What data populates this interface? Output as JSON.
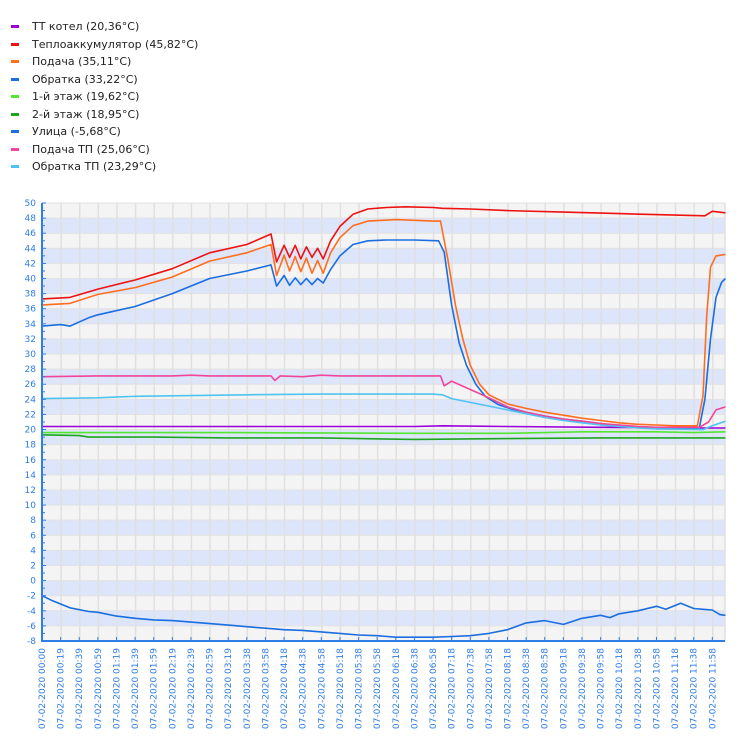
{
  "chart_data": {
    "type": "line",
    "title": "",
    "xlabel": "",
    "ylabel": "°C",
    "ylim": [
      -8,
      50
    ],
    "yticks": [
      50,
      48,
      46,
      44,
      42,
      40,
      38,
      36,
      34,
      32,
      30,
      28,
      26,
      24,
      22,
      20,
      18,
      16,
      14,
      12,
      10,
      8,
      6,
      4,
      2,
      0,
      -2,
      -4,
      -6,
      -8
    ],
    "grid": true,
    "legend_position": "top-left",
    "band_colors": {
      "light": "#f4f4f4",
      "blue": "#dde5fb"
    },
    "axis_color": "#2f7de6",
    "categories": [
      "07-02-2020 00:00",
      "07-02-2020 00:19",
      "07-02-2020 00:39",
      "07-02-2020 00:59",
      "07-02-2020 01:19",
      "07-02-2020 01:39",
      "07-02-2020 01:59",
      "07-02-2020 02:19",
      "07-02-2020 02:39",
      "07-02-2020 02:59",
      "07-02-2020 03:19",
      "07-02-2020 03:38",
      "07-02-2020 03:58",
      "07-02-2020 04:18",
      "07-02-2020 04:38",
      "07-02-2020 04:58",
      "07-02-2020 05:18",
      "07-02-2020 05:38",
      "07-02-2020 05:58",
      "07-02-2020 06:18",
      "07-02-2020 06:38",
      "07-02-2020 06:58",
      "07-02-2020 07:18",
      "07-02-2020 07:38",
      "07-02-2020 07:58",
      "07-02-2020 08:18",
      "07-02-2020 08:38",
      "07-02-2020 08:58",
      "07-02-2020 09:18",
      "07-02-2020 09:38",
      "07-02-2020 09:58",
      "07-02-2020 10:18",
      "07-02-2020 10:38",
      "07-02-2020 10:58",
      "07-02-2020 11:18",
      "07-02-2020 11:38",
      "07-02-2020 11:58"
    ],
    "series": [
      {
        "name": "ТТ котел",
        "legend": "ТТ котел (20,36°C)",
        "color": "#9b00d9",
        "points": [
          [
            0,
            20.4
          ],
          [
            10,
            20.4
          ],
          [
            20,
            20.4
          ],
          [
            21.5,
            20.5
          ],
          [
            25,
            20.4
          ],
          [
            30,
            20.3
          ],
          [
            35.5,
            20.2
          ],
          [
            36.7,
            20.2
          ]
        ]
      },
      {
        "name": "Теплоаккумулятор",
        "legend": "Теплоаккумулятор (45,82°C)",
        "color": "#ee1111",
        "points": [
          [
            0,
            37.3
          ],
          [
            1.5,
            37.5
          ],
          [
            3,
            38.6
          ],
          [
            5,
            39.8
          ],
          [
            7,
            41.3
          ],
          [
            9,
            43.4
          ],
          [
            11,
            44.5
          ],
          [
            12.3,
            45.9
          ],
          [
            12.6,
            42.2
          ],
          [
            13,
            44.4
          ],
          [
            13.3,
            42.8
          ],
          [
            13.6,
            44.4
          ],
          [
            13.9,
            42.6
          ],
          [
            14.2,
            44.2
          ],
          [
            14.5,
            42.8
          ],
          [
            14.8,
            44.0
          ],
          [
            15.1,
            42.6
          ],
          [
            15.5,
            45.0
          ],
          [
            16,
            46.9
          ],
          [
            16.7,
            48.5
          ],
          [
            17.5,
            49.2
          ],
          [
            18.5,
            49.4
          ],
          [
            19.5,
            49.5
          ],
          [
            21,
            49.4
          ],
          [
            21.5,
            49.3
          ],
          [
            23,
            49.2
          ],
          [
            25,
            49.0
          ],
          [
            28,
            48.8
          ],
          [
            31,
            48.6
          ],
          [
            34,
            48.4
          ],
          [
            35.6,
            48.3
          ],
          [
            36,
            48.9
          ],
          [
            36.7,
            48.7
          ]
        ]
      },
      {
        "name": "Подача",
        "legend": "Подача (35,11°C)",
        "color": "#ff6d1f",
        "points": [
          [
            0,
            36.5
          ],
          [
            1.5,
            36.7
          ],
          [
            3,
            37.9
          ],
          [
            5,
            38.8
          ],
          [
            7,
            40.2
          ],
          [
            9,
            42.3
          ],
          [
            11,
            43.4
          ],
          [
            12.3,
            44.5
          ],
          [
            12.6,
            40.4
          ],
          [
            13,
            43.1
          ],
          [
            13.3,
            41.0
          ],
          [
            13.6,
            42.9
          ],
          [
            13.9,
            40.9
          ],
          [
            14.2,
            42.7
          ],
          [
            14.5,
            40.7
          ],
          [
            14.8,
            42.4
          ],
          [
            15.1,
            40.7
          ],
          [
            15.5,
            43.4
          ],
          [
            16,
            45.4
          ],
          [
            16.7,
            47.0
          ],
          [
            17.5,
            47.6
          ],
          [
            19,
            47.8
          ],
          [
            21,
            47.6
          ],
          [
            21.4,
            47.6
          ],
          [
            21.8,
            42.5
          ],
          [
            22.2,
            36.5
          ],
          [
            22.6,
            32.0
          ],
          [
            23,
            28.5
          ],
          [
            23.5,
            26.0
          ],
          [
            24,
            24.6
          ],
          [
            25,
            23.4
          ],
          [
            26,
            22.8
          ],
          [
            27,
            22.3
          ],
          [
            28,
            21.9
          ],
          [
            29,
            21.5
          ],
          [
            30,
            21.2
          ],
          [
            31,
            20.9
          ],
          [
            32,
            20.7
          ],
          [
            33,
            20.6
          ],
          [
            34,
            20.5
          ],
          [
            35.2,
            20.5
          ],
          [
            35.5,
            24.5
          ],
          [
            35.7,
            35.0
          ],
          [
            35.9,
            41.5
          ],
          [
            36.2,
            43.0
          ],
          [
            36.7,
            43.2
          ]
        ]
      },
      {
        "name": "Обратка",
        "legend": "Обратка (33,22°C)",
        "color": "#1a6ee0",
        "points": [
          [
            0,
            33.7
          ],
          [
            1,
            33.9
          ],
          [
            1.5,
            33.7
          ],
          [
            2.5,
            34.8
          ],
          [
            3,
            35.2
          ],
          [
            5,
            36.3
          ],
          [
            7,
            38.0
          ],
          [
            9,
            40.0
          ],
          [
            11,
            41.0
          ],
          [
            12.3,
            41.8
          ],
          [
            12.6,
            39.0
          ],
          [
            13,
            40.4
          ],
          [
            13.3,
            39.1
          ],
          [
            13.6,
            40.1
          ],
          [
            13.9,
            39.2
          ],
          [
            14.2,
            40.0
          ],
          [
            14.5,
            39.2
          ],
          [
            14.8,
            40.0
          ],
          [
            15.1,
            39.4
          ],
          [
            15.5,
            41.2
          ],
          [
            16,
            43.0
          ],
          [
            16.7,
            44.5
          ],
          [
            17.5,
            45.0
          ],
          [
            18.5,
            45.1
          ],
          [
            20,
            45.1
          ],
          [
            21.3,
            45.0
          ],
          [
            21.6,
            43.5
          ],
          [
            22,
            36.5
          ],
          [
            22.4,
            31.5
          ],
          [
            22.8,
            28.5
          ],
          [
            23.3,
            26.0
          ],
          [
            23.8,
            24.4
          ],
          [
            24.5,
            23.3
          ],
          [
            25.5,
            22.5
          ],
          [
            27,
            21.8
          ],
          [
            28,
            21.4
          ],
          [
            29,
            21.1
          ],
          [
            30,
            20.8
          ],
          [
            31,
            20.5
          ],
          [
            32,
            20.3
          ],
          [
            33,
            20.1
          ],
          [
            34,
            20.1
          ],
          [
            35.3,
            20.2
          ],
          [
            35.6,
            24.0
          ],
          [
            35.9,
            32.0
          ],
          [
            36.2,
            37.5
          ],
          [
            36.5,
            39.5
          ],
          [
            36.7,
            40.0
          ]
        ]
      },
      {
        "name": "1-й этаж",
        "legend": "1-й этаж (19,62°C)",
        "color": "#55e62e",
        "points": [
          [
            0,
            19.6
          ],
          [
            10,
            19.6
          ],
          [
            20,
            19.5
          ],
          [
            25,
            19.5
          ],
          [
            29,
            19.7
          ],
          [
            30,
            19.7
          ],
          [
            33,
            19.7
          ],
          [
            35,
            19.6
          ],
          [
            36.7,
            19.7
          ]
        ]
      },
      {
        "name": "2-й этаж",
        "legend": "2-й этаж (18,95°C)",
        "color": "#1ea51e",
        "points": [
          [
            0,
            19.3
          ],
          [
            2,
            19.2
          ],
          [
            2.5,
            19.0
          ],
          [
            6,
            19.0
          ],
          [
            10,
            18.9
          ],
          [
            15,
            18.9
          ],
          [
            17,
            18.8
          ],
          [
            20,
            18.7
          ],
          [
            25,
            18.8
          ],
          [
            30,
            18.9
          ],
          [
            33,
            18.9
          ],
          [
            35,
            18.9
          ],
          [
            36.7,
            18.9
          ]
        ]
      },
      {
        "name": "Улица",
        "legend": "Улица (-5,68°C)",
        "color": "#1a6ee0",
        "points": [
          [
            0,
            -2.0
          ],
          [
            0.5,
            -2.6
          ],
          [
            1.5,
            -3.6
          ],
          [
            2.5,
            -4.1
          ],
          [
            3,
            -4.2
          ],
          [
            4,
            -4.7
          ],
          [
            5,
            -5.0
          ],
          [
            6,
            -5.2
          ],
          [
            7,
            -5.3
          ],
          [
            8,
            -5.5
          ],
          [
            9,
            -5.7
          ],
          [
            10,
            -5.9
          ],
          [
            11,
            -6.1
          ],
          [
            12,
            -6.3
          ],
          [
            13,
            -6.5
          ],
          [
            14,
            -6.6
          ],
          [
            15,
            -6.8
          ],
          [
            16,
            -7.0
          ],
          [
            17,
            -7.2
          ],
          [
            18,
            -7.3
          ],
          [
            19,
            -7.5
          ],
          [
            20,
            -7.5
          ],
          [
            21,
            -7.5
          ],
          [
            22,
            -7.4
          ],
          [
            23,
            -7.3
          ],
          [
            24,
            -7.0
          ],
          [
            25,
            -6.5
          ],
          [
            26,
            -5.6
          ],
          [
            27,
            -5.3
          ],
          [
            28,
            -5.8
          ],
          [
            29,
            -5.0
          ],
          [
            30,
            -4.6
          ],
          [
            30.5,
            -4.9
          ],
          [
            31,
            -4.4
          ],
          [
            32,
            -4.0
          ],
          [
            33,
            -3.4
          ],
          [
            33.5,
            -3.8
          ],
          [
            34.3,
            -3.0
          ],
          [
            35,
            -3.7
          ],
          [
            35.5,
            -3.8
          ],
          [
            36,
            -3.9
          ],
          [
            36.4,
            -4.5
          ],
          [
            36.7,
            -4.6
          ]
        ]
      },
      {
        "name": "Подача ТП",
        "legend": "Подача ТП (25,06°C)",
        "color": "#f2449a",
        "points": [
          [
            0,
            27.0
          ],
          [
            3,
            27.1
          ],
          [
            7,
            27.1
          ],
          [
            8,
            27.2
          ],
          [
            9,
            27.1
          ],
          [
            12.3,
            27.1
          ],
          [
            12.5,
            26.5
          ],
          [
            12.8,
            27.1
          ],
          [
            14,
            27.0
          ],
          [
            15,
            27.2
          ],
          [
            16,
            27.1
          ],
          [
            21.4,
            27.1
          ],
          [
            21.6,
            25.8
          ],
          [
            22,
            26.4
          ],
          [
            23,
            25.3
          ],
          [
            24,
            24.2
          ],
          [
            25,
            23.0
          ],
          [
            26,
            22.3
          ],
          [
            27,
            21.8
          ],
          [
            28,
            21.4
          ],
          [
            29,
            21.1
          ],
          [
            30,
            20.8
          ],
          [
            31,
            20.6
          ],
          [
            32,
            20.4
          ],
          [
            33,
            20.3
          ],
          [
            35.3,
            20.3
          ],
          [
            35.8,
            21.0
          ],
          [
            36.2,
            22.6
          ],
          [
            36.7,
            23.0
          ]
        ]
      },
      {
        "name": "Обратка ТП",
        "legend": "Обратка ТП (23,29°C)",
        "color": "#4fc3f2",
        "points": [
          [
            0,
            24.1
          ],
          [
            3,
            24.2
          ],
          [
            5,
            24.4
          ],
          [
            8,
            24.5
          ],
          [
            11,
            24.6
          ],
          [
            15,
            24.7
          ],
          [
            21,
            24.7
          ],
          [
            21.5,
            24.6
          ],
          [
            22,
            24.1
          ],
          [
            23,
            23.6
          ],
          [
            24,
            23.1
          ],
          [
            25,
            22.6
          ],
          [
            26,
            22.1
          ],
          [
            27,
            21.6
          ],
          [
            28,
            21.2
          ],
          [
            29,
            20.9
          ],
          [
            30,
            20.6
          ],
          [
            31,
            20.4
          ],
          [
            32,
            20.2
          ],
          [
            33,
            20.1
          ],
          [
            35.5,
            20.0
          ],
          [
            36,
            20.5
          ],
          [
            36.7,
            21.1
          ]
        ]
      }
    ]
  }
}
